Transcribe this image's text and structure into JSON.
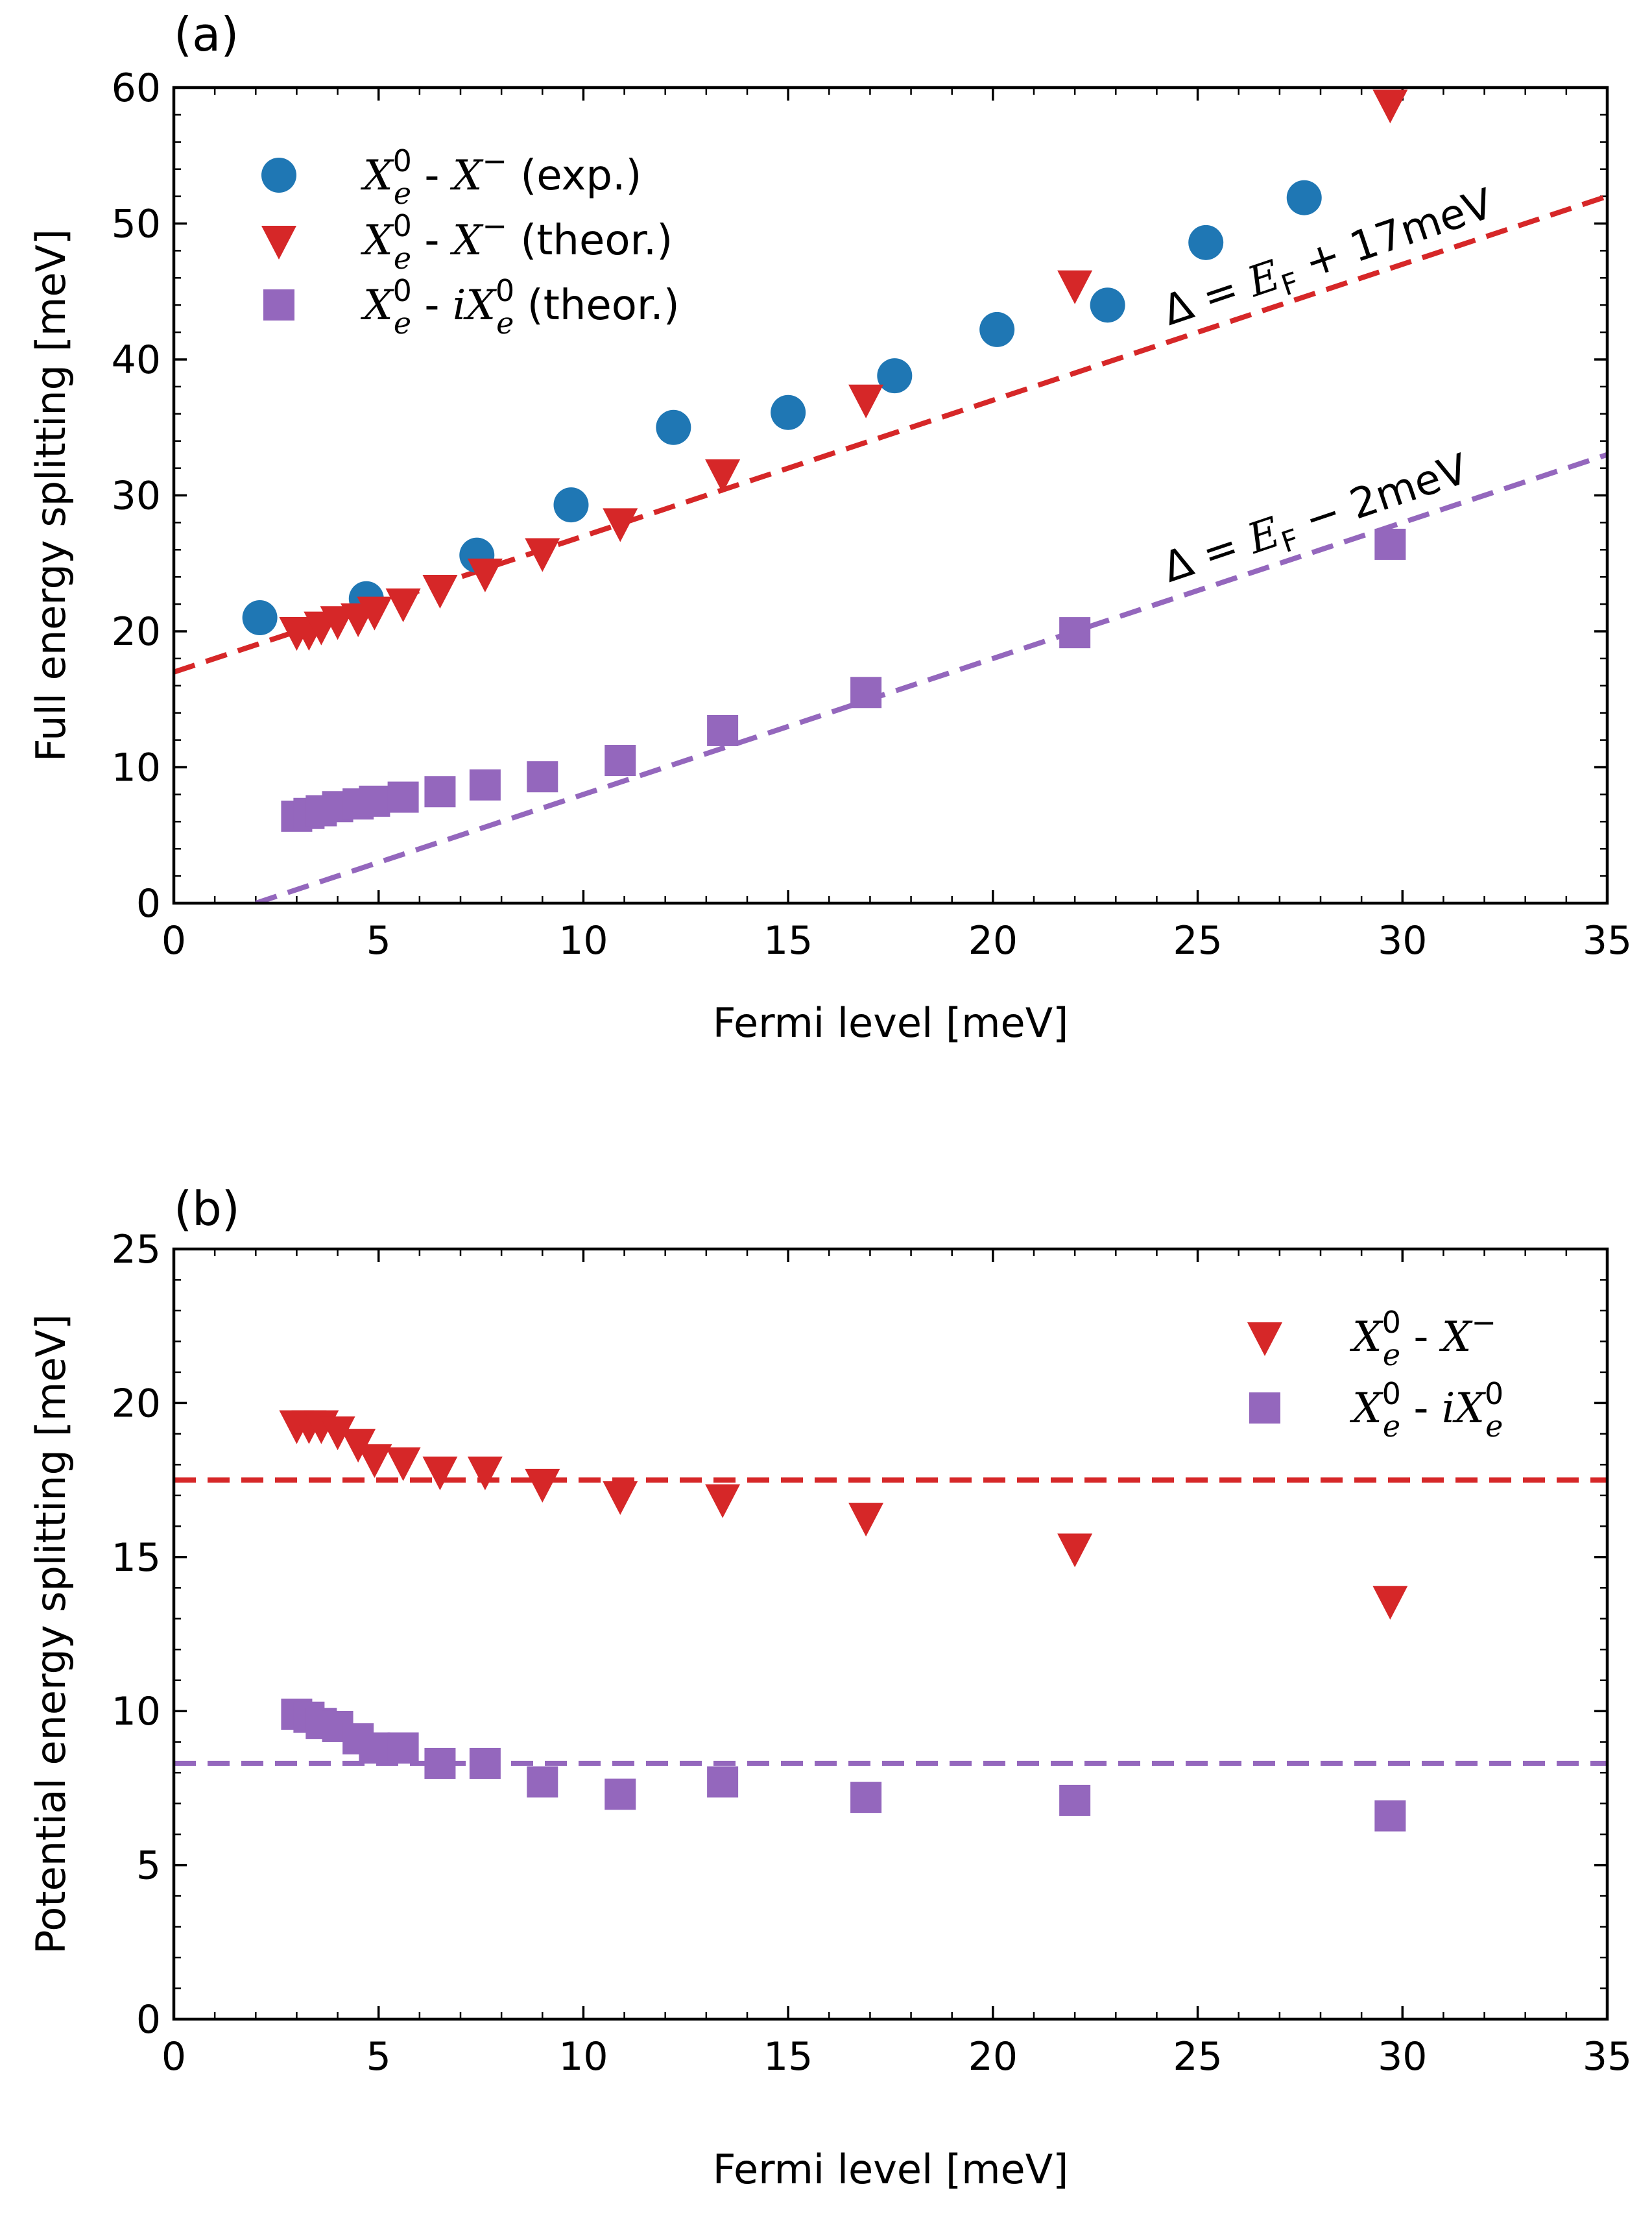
{
  "chart_data": [
    {
      "panel_label": "(a)",
      "type": "scatter",
      "xlabel": "Fermi level [meV]",
      "ylabel": "Full energy splitting [meV]",
      "xlim": [
        0,
        35
      ],
      "ylim": [
        0,
        60
      ],
      "xticks": [
        0,
        5,
        10,
        15,
        20,
        25,
        30,
        35
      ],
      "yticks": [
        0,
        10,
        20,
        30,
        40,
        50,
        60
      ],
      "grid": false,
      "legend_position": "top-left",
      "series": [
        {
          "name": "X_e^0 - X^- (exp.)",
          "legend_label": {
            "a": "X",
            "a_sup": "0",
            "a_sub": "e",
            "sep": " - ",
            "b": "X",
            "b_sup": "−",
            "tail": " (exp.)"
          },
          "marker": "circle",
          "color": "#1f77b4",
          "x": [
            2.1,
            4.7,
            7.4,
            9.7,
            12.2,
            15.0,
            17.6,
            20.1,
            22.8,
            25.2,
            27.6
          ],
          "y": [
            21.0,
            22.4,
            25.6,
            29.3,
            35.0,
            36.1,
            38.8,
            42.2,
            44.0,
            48.6,
            51.9
          ]
        },
        {
          "name": "X_e^0 - X^- (theor.)",
          "legend_label": {
            "a": "X",
            "a_sup": "0",
            "a_sub": "e",
            "sep": " - ",
            "b": "X",
            "b_sup": "−",
            "tail": " (theor.)"
          },
          "marker": "triangle-down",
          "color": "#d62728",
          "x": [
            3.0,
            3.3,
            3.6,
            4.0,
            4.5,
            4.9,
            5.6,
            6.5,
            7.6,
            9.0,
            10.9,
            13.4,
            16.9,
            22.0,
            29.7
          ],
          "y": [
            20.0,
            20.0,
            20.4,
            20.8,
            21.0,
            21.5,
            22.1,
            23.1,
            24.3,
            25.8,
            28.0,
            31.6,
            37.1,
            45.5,
            58.8
          ]
        },
        {
          "name": "X_e^0 - iX_e^0 (theor.)",
          "legend_label": {
            "a": "X",
            "a_sup": "0",
            "a_sub": "e",
            "sep": " - ",
            "b": "iX",
            "b_sup": "0",
            "b_sub": "e",
            "tail": " (theor.)"
          },
          "marker": "square",
          "color": "#9467bd",
          "x": [
            3.0,
            3.3,
            3.6,
            4.0,
            4.5,
            4.9,
            5.6,
            6.5,
            7.6,
            9.0,
            10.9,
            13.4,
            16.9,
            22.0,
            29.7
          ],
          "y": [
            6.4,
            6.6,
            6.8,
            7.1,
            7.3,
            7.5,
            7.8,
            8.2,
            8.7,
            9.3,
            10.5,
            12.7,
            15.5,
            19.9,
            26.4
          ]
        }
      ],
      "fit_lines": [
        {
          "name": "Δ = E_F + 17meV",
          "slope": 1,
          "intercept": 17,
          "color": "#d62728",
          "x_range": [
            0,
            35
          ]
        },
        {
          "name": "Δ = E_F − 2meV",
          "slope": 1,
          "intercept": -2,
          "color": "#9467bd",
          "x_range": [
            2,
            35
          ]
        }
      ],
      "annotations": [
        {
          "id": "upper",
          "text_prefix": "Δ = E",
          "sub": "F",
          "text_suffix": " + 17meV",
          "at_x": 24.3,
          "at_y": 42.5
        },
        {
          "id": "lower",
          "text_prefix": "Δ = E",
          "sub": "F",
          "text_suffix": " − 2meV",
          "at_x": 24.3,
          "at_y": 23.6
        }
      ]
    },
    {
      "panel_label": "(b)",
      "type": "scatter",
      "xlabel": "Fermi level [meV]",
      "ylabel": "Potential energy splitting [meV]",
      "xlim": [
        0,
        35
      ],
      "ylim": [
        0,
        25
      ],
      "xticks": [
        0,
        5,
        10,
        15,
        20,
        25,
        30,
        35
      ],
      "yticks": [
        0,
        5,
        10,
        15,
        20,
        25
      ],
      "grid": false,
      "legend_position": "top-right",
      "series": [
        {
          "name": "X_e^0 - X^-",
          "legend_label": {
            "a": "X",
            "a_sup": "0",
            "a_sub": "e",
            "sep": " - ",
            "b": "X",
            "b_sup": "−",
            "tail": ""
          },
          "marker": "triangle-down",
          "color": "#d62728",
          "x": [
            3.0,
            3.3,
            3.6,
            4.0,
            4.5,
            4.9,
            5.6,
            6.5,
            7.6,
            9.0,
            10.9,
            13.4,
            16.9,
            22.0,
            29.7
          ],
          "y": [
            19.3,
            19.3,
            19.3,
            19.1,
            18.7,
            18.2,
            18.1,
            17.8,
            17.8,
            17.4,
            17.0,
            16.9,
            16.3,
            15.3,
            13.6
          ]
        },
        {
          "name": "X_e^0 - iX_e^0",
          "legend_label": {
            "a": "X",
            "a_sup": "0",
            "a_sub": "e",
            "sep": " - ",
            "b": "iX",
            "b_sup": "0",
            "b_sub": "e",
            "tail": ""
          },
          "marker": "square",
          "color": "#9467bd",
          "x": [
            3.0,
            3.3,
            3.6,
            4.0,
            4.5,
            4.9,
            5.6,
            6.5,
            7.6,
            9.0,
            10.9,
            13.4,
            16.9,
            22.0,
            29.7
          ],
          "y": [
            9.9,
            9.8,
            9.6,
            9.5,
            9.1,
            8.8,
            8.8,
            8.3,
            8.3,
            7.7,
            7.3,
            7.7,
            7.2,
            7.1,
            6.6
          ]
        }
      ],
      "hlines": [
        {
          "y": 17.5,
          "color": "#d62728"
        },
        {
          "y": 8.3,
          "color": "#9467bd"
        }
      ]
    }
  ]
}
